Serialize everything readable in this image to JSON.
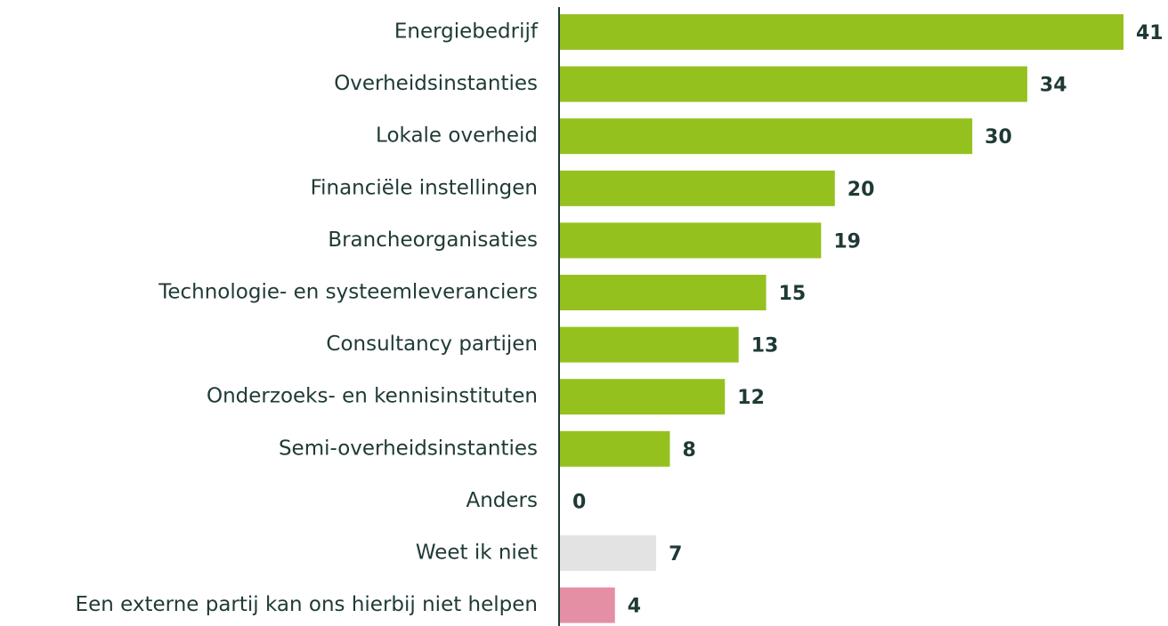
{
  "chart_data": {
    "type": "bar",
    "orientation": "horizontal",
    "categories": [
      "Energiebedrijf",
      "Overheidsinstanties",
      "Lokale overheid",
      "Financiële instellingen",
      "Brancheorganisaties",
      "Technologie- en systeemleveranciers",
      "Consultancy partijen",
      "Onderzoeks- en kennisinstituten",
      "Semi-overheidsinstanties",
      "Anders",
      "Weet ik niet",
      "Een externe partij kan ons hierbij niet helpen"
    ],
    "values": [
      41,
      34,
      30,
      20,
      19,
      15,
      13,
      12,
      8,
      0,
      7,
      4
    ],
    "colors": [
      "#95c11f",
      "#95c11f",
      "#95c11f",
      "#95c11f",
      "#95c11f",
      "#95c11f",
      "#95c11f",
      "#95c11f",
      "#95c11f",
      "#95c11f",
      "#e3e3e3",
      "#e58fa5"
    ]
  }
}
